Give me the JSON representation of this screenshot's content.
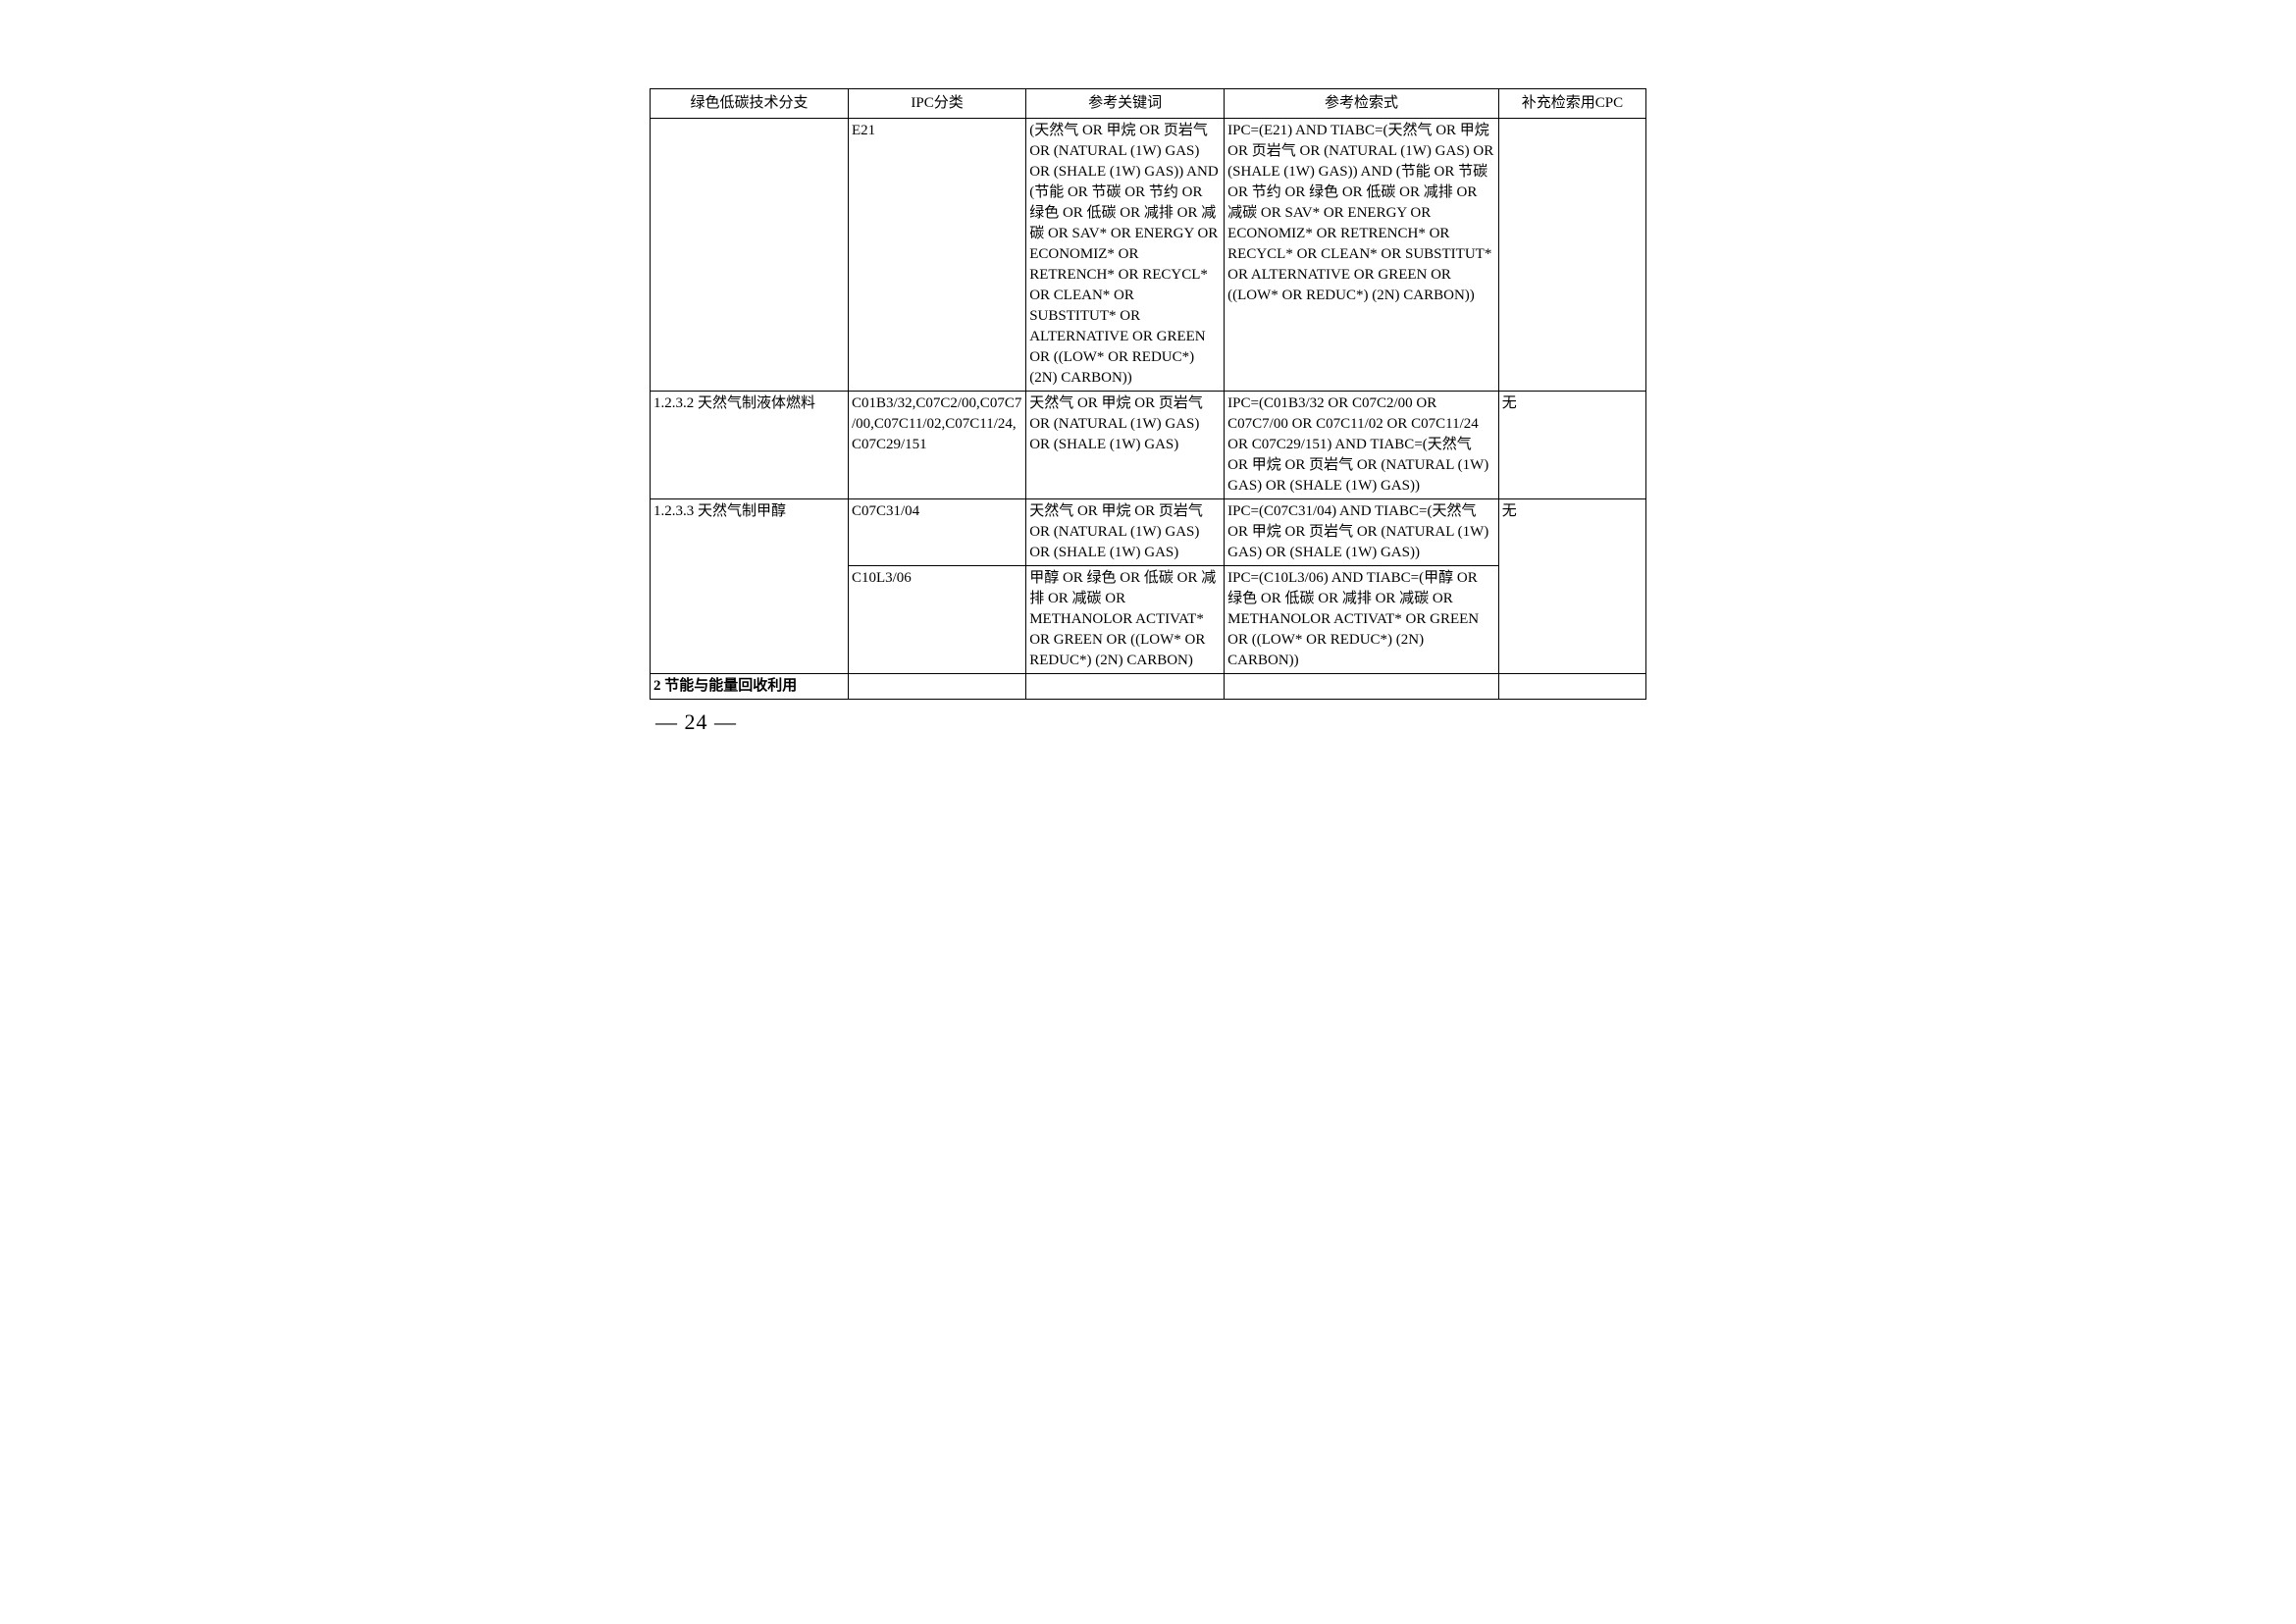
{
  "table": {
    "headers": {
      "branch": "绿色低碳技术分支",
      "ipc": "IPC分类",
      "keywords": "参考关键词",
      "query": "参考检索式",
      "cpc": "补充检索用CPC"
    },
    "rows": [
      {
        "branch": "",
        "ipc": "E21",
        "keywords": "(天然气 OR 甲烷 OR 页岩气 OR (NATURAL (1W) GAS) OR (SHALE (1W) GAS)) AND (节能 OR 节碳 OR 节约 OR 绿色 OR 低碳 OR 减排 OR 减碳 OR SAV* OR ENERGY OR ECONOMIZ* OR RETRENCH* OR RECYCL* OR CLEAN* OR SUBSTITUT* OR ALTERNATIVE OR GREEN OR ((LOW* OR REDUC*) (2N) CARBON))",
        "query": "IPC=(E21) AND TIABC=(天然气 OR 甲烷 OR 页岩气 OR (NATURAL (1W) GAS) OR (SHALE (1W) GAS)) AND (节能 OR 节碳 OR 节约 OR 绿色 OR 低碳 OR 减排 OR 减碳 OR SAV* OR ENERGY OR ECONOMIZ* OR RETRENCH* OR RECYCL* OR CLEAN* OR SUBSTITUT* OR ALTERNATIVE OR GREEN OR ((LOW* OR REDUC*) (2N) CARBON))",
        "cpc": ""
      },
      {
        "branch": "1.2.3.2 天然气制液体燃料",
        "ipc": "C01B3/32,C07C2/00,C07C7/00,C07C11/02,C07C11/24,C07C29/151",
        "keywords": "天然气 OR 甲烷 OR 页岩气 OR (NATURAL (1W) GAS) OR (SHALE (1W) GAS)",
        "query": "IPC=(C01B3/32 OR C07C2/00 OR C07C7/00 OR C07C11/02 OR C07C11/24 OR C07C29/151) AND TIABC=(天然气 OR 甲烷 OR 页岩气 OR (NATURAL (1W) GAS) OR (SHALE (1W) GAS))",
        "cpc": "无"
      },
      {
        "branch": "1.2.3.3 天然气制甲醇",
        "branch_rowspan": 2,
        "ipc": "C07C31/04",
        "keywords": "天然气 OR 甲烷 OR 页岩气 OR (NATURAL (1W) GAS) OR (SHALE (1W) GAS)",
        "query": "IPC=(C07C31/04) AND TIABC=(天然气 OR 甲烷 OR 页岩气 OR (NATURAL (1W) GAS) OR (SHALE (1W) GAS))",
        "cpc": "无",
        "cpc_rowspan": 2
      },
      {
        "branch_skip": true,
        "ipc": "C10L3/06",
        "keywords": "甲醇 OR 绿色 OR 低碳 OR 减排 OR 减碳 OR METHANOLOR ACTIVAT* OR GREEN OR ((LOW* OR REDUC*) (2N) CARBON)",
        "query": "IPC=(C10L3/06) AND TIABC=(甲醇 OR 绿色 OR 低碳 OR 减排 OR 减碳 OR METHANOLOR ACTIVAT* OR GREEN OR ((LOW* OR REDUC*) (2N) CARBON))",
        "cpc_skip": true
      },
      {
        "branch": "2 节能与能量回收利用",
        "branch_bold": true,
        "ipc": "",
        "keywords": "",
        "query": "",
        "cpc": ""
      }
    ]
  },
  "page_number": "— 24 —"
}
